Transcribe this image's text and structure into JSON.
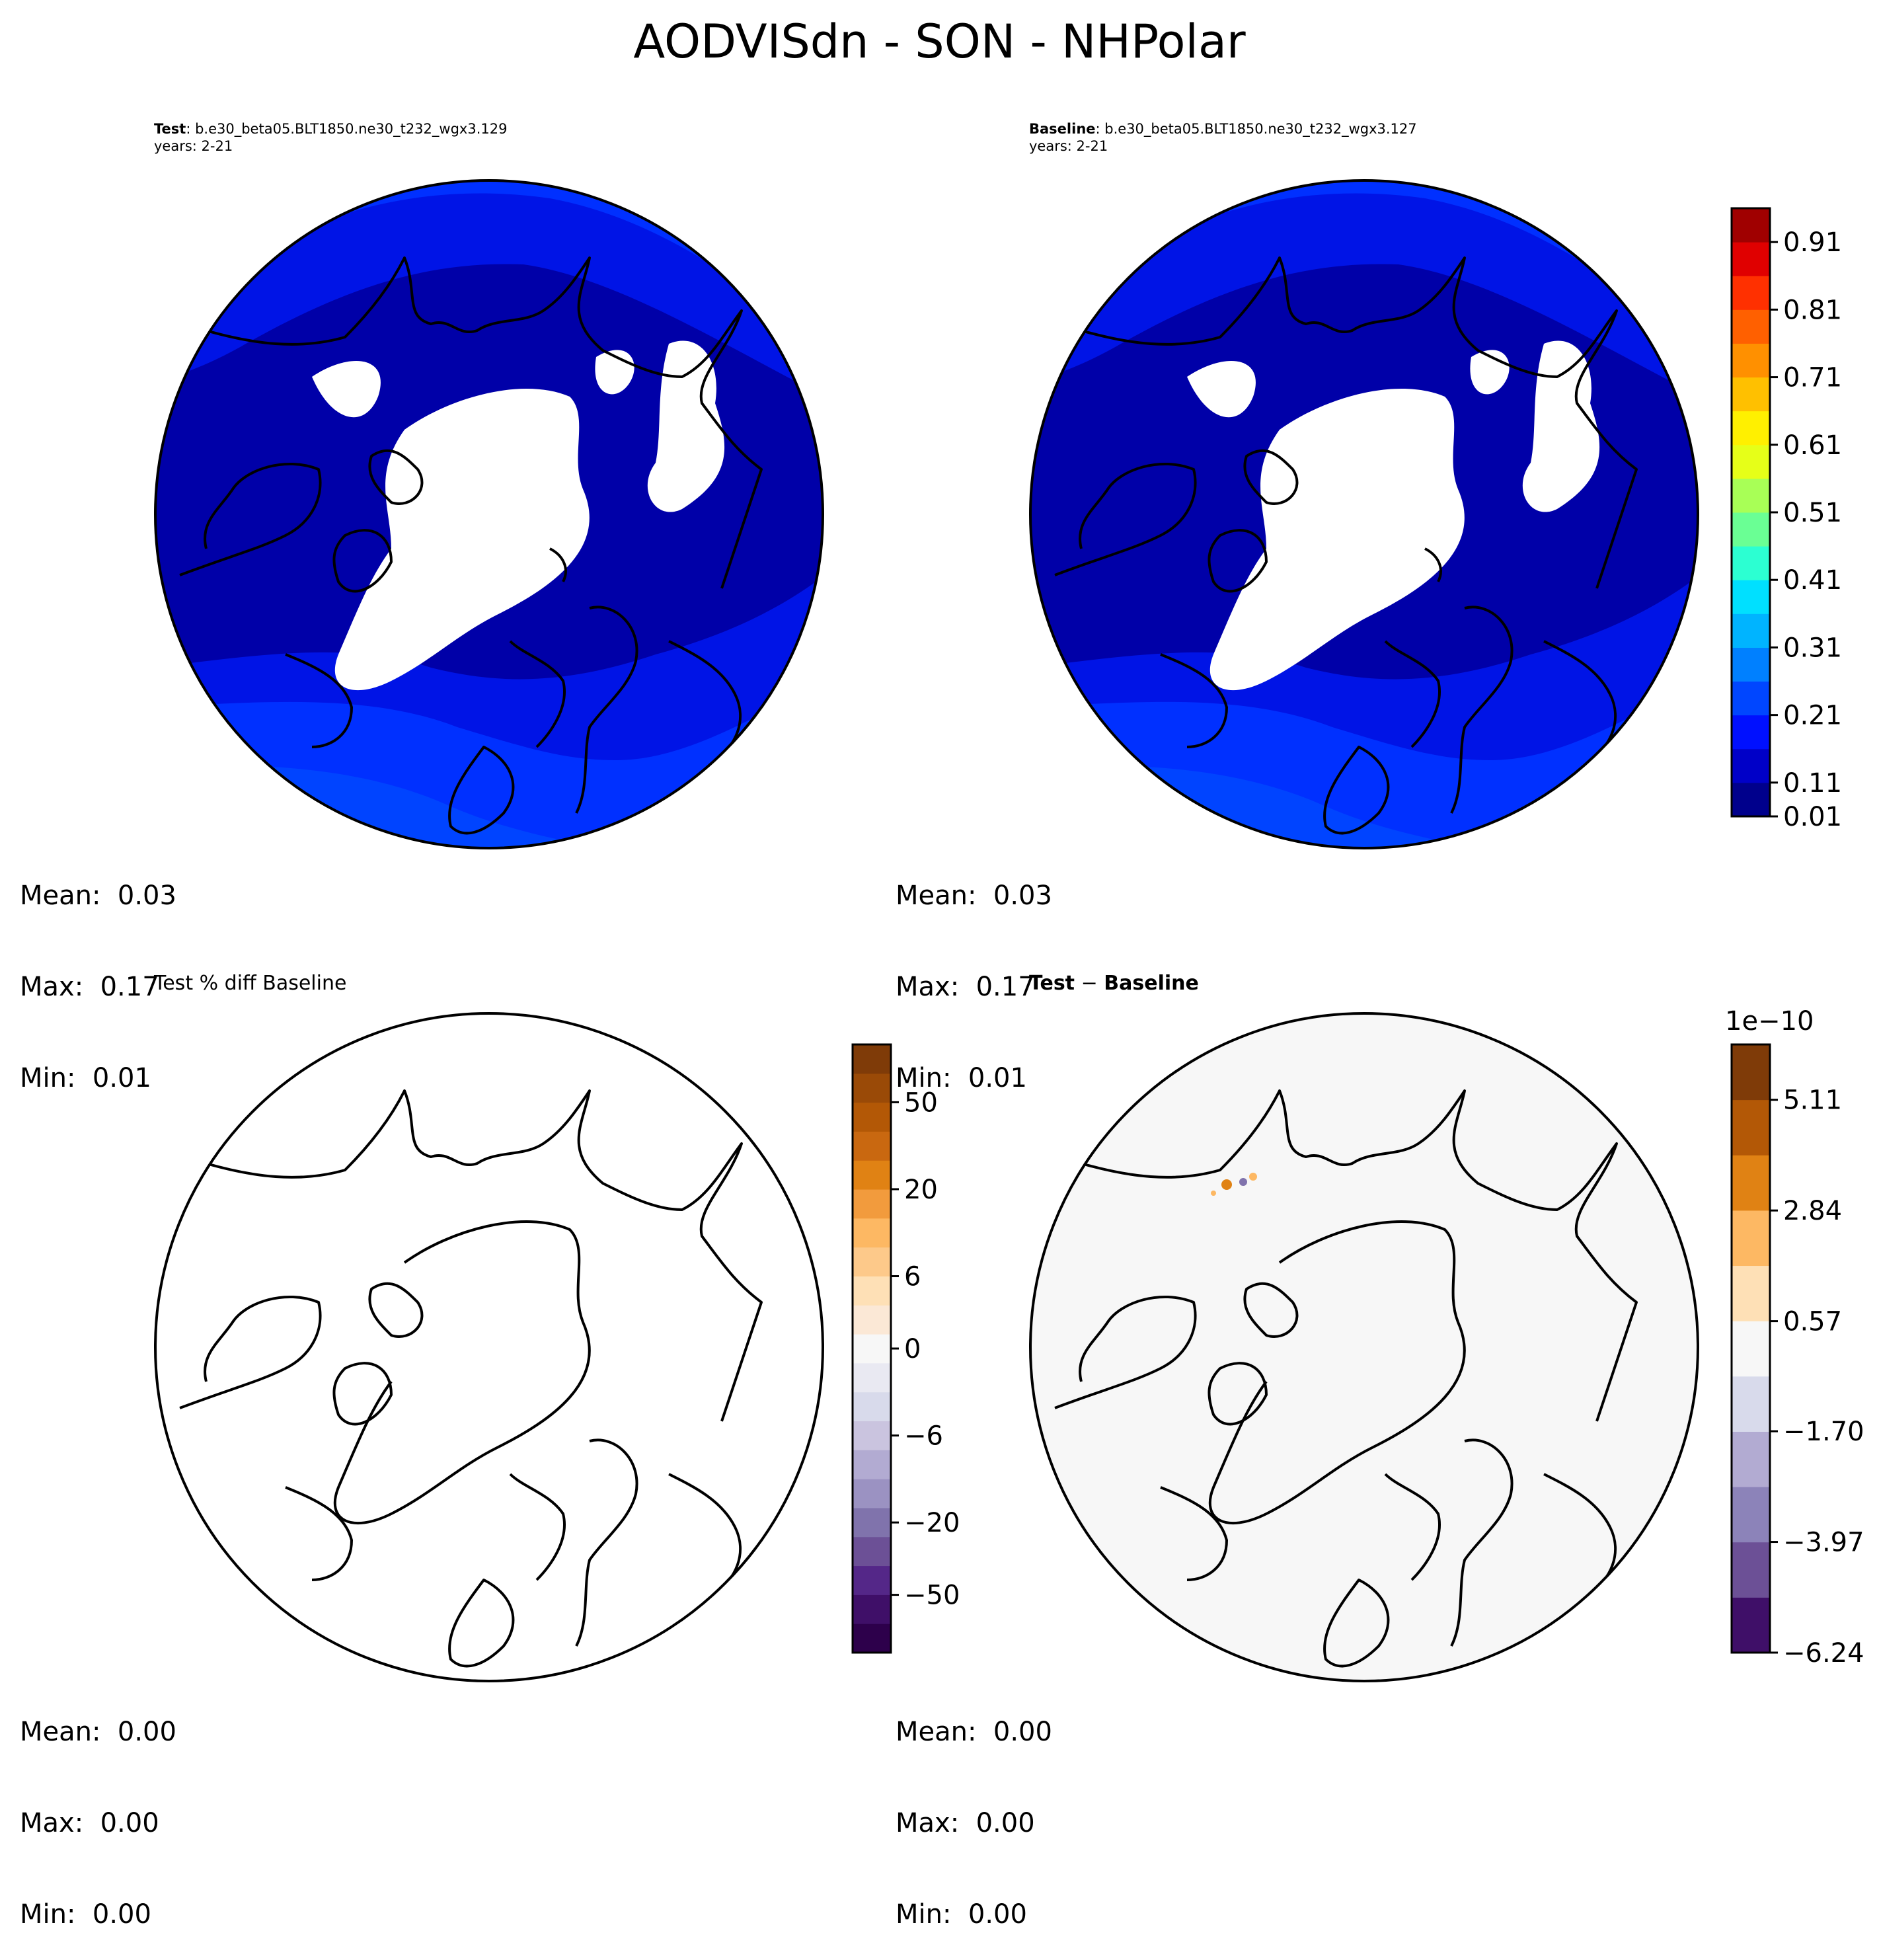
{
  "figure": {
    "title": "AODVISdn - SON - NHPolar"
  },
  "panels": {
    "test": {
      "label": "Test",
      "case": ": b.e30_beta05.BLT1850.ne30_t232_wgx3.129",
      "years": "years: 2-21",
      "stats": {
        "mean": "Mean:  0.03",
        "max": "Max:  0.17",
        "min": "Min:  0.01"
      }
    },
    "baseline": {
      "label": "Baseline",
      "case": ": b.e30_beta05.BLT1850.ne30_t232_wgx3.127",
      "years": "years: 2-21",
      "stats": {
        "mean": "Mean:  0.03",
        "max": "Max:  0.17",
        "min": "Min:  0.01"
      }
    },
    "pct_diff": {
      "title": "Test % diff Baseline",
      "stats": {
        "mean": "Mean:  0.00",
        "max": "Max:  0.00",
        "min": "Min:  0.00"
      }
    },
    "diff": {
      "title_a": "Test",
      "title_op": " − ",
      "title_b": "Baseline",
      "stats": {
        "mean": "Mean:  0.00",
        "max": "Max:  0.00",
        "min": "Min:  0.00"
      }
    }
  },
  "colorbars": {
    "field": {
      "ticks": [
        "0.91",
        "0.81",
        "0.71",
        "0.61",
        "0.51",
        "0.41",
        "0.31",
        "0.21",
        "0.11",
        "0.01"
      ],
      "colors": [
        "#00008c",
        "#0000c8",
        "#0010ff",
        "#0046ff",
        "#0080ff",
        "#00b4ff",
        "#00e0ff",
        "#2cffd2",
        "#6aff94",
        "#a8ff56",
        "#e6ff18",
        "#fff000",
        "#ffc000",
        "#ff9000",
        "#ff6000",
        "#ff3000",
        "#e00000",
        "#a00000"
      ]
    },
    "pct": {
      "ticks": [
        "50",
        "20",
        "6",
        "0",
        "−6",
        "−20",
        "−50"
      ],
      "colors": [
        "#2d004b",
        "#3f0f68",
        "#542788",
        "#6c5096",
        "#8073ac",
        "#9b92c2",
        "#b2abd2",
        "#cac4df",
        "#d8daeb",
        "#e9e9f2",
        "#f7f7f7",
        "#fbe8d6",
        "#fee0b6",
        "#fdc98a",
        "#fdb863",
        "#f29b3d",
        "#e08214",
        "#c96810",
        "#b35806",
        "#9a4a07",
        "#7f3b08"
      ]
    },
    "diff": {
      "exponent": "1e−10",
      "ticks": [
        "5.11",
        "2.84",
        "0.57",
        "−1.70",
        "−3.97",
        "−6.24"
      ],
      "colors": [
        "#3f0f68",
        "#6c5096",
        "#8c83b9",
        "#b2abd2",
        "#d8daeb",
        "#f7f7f7",
        "#fee0b6",
        "#fdb863",
        "#e08214",
        "#b35806",
        "#7f3b08"
      ]
    }
  },
  "map_colors": {
    "field_background": "#0000a8",
    "band_1": "#0014e6",
    "band_2": "#0030ff",
    "band_3": "#0044ff",
    "missing": "#ffffff",
    "diff_background": "#f7f7f7",
    "coastline": "#000000"
  }
}
